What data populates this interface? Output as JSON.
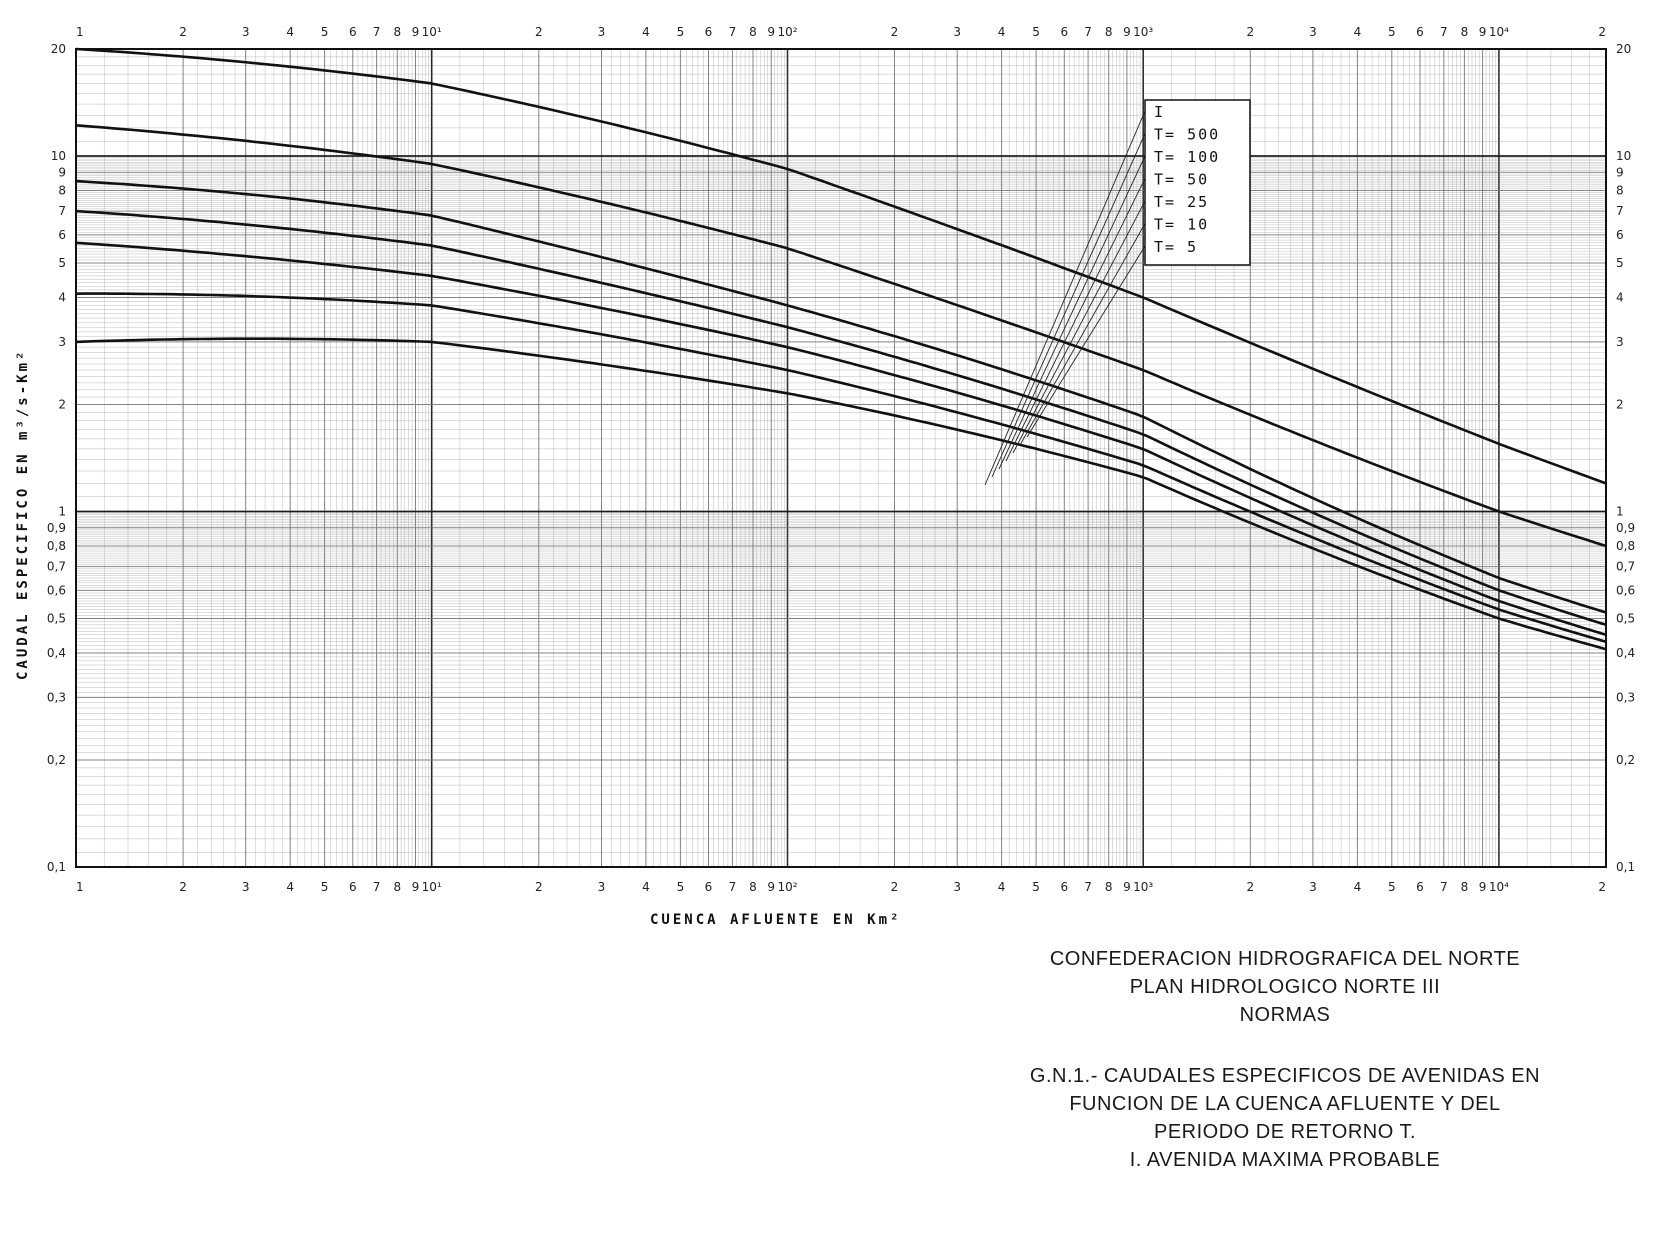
{
  "chart_data": {
    "type": "line",
    "xscale": "log",
    "yscale": "log",
    "xlim": [
      1,
      20000
    ],
    "ylim": [
      0.1,
      20
    ],
    "grid": true,
    "xlabel": "CUENCA AFLUENTE EN Km²",
    "ylabel": "CAUDAL ESPECIFICO EN m³/s-Km²",
    "x_tick_labels": [
      "1",
      "2",
      "3",
      "4",
      "5",
      "6",
      "7",
      "8",
      "9",
      "10¹",
      "2",
      "3",
      "4",
      "5",
      "6",
      "7",
      "8",
      "9",
      "10²",
      "2",
      "3",
      "4",
      "5",
      "6",
      "7",
      "8",
      "9",
      "10³",
      "2",
      "3",
      "4",
      "5",
      "6",
      "7",
      "8",
      "9",
      "10⁴",
      "2"
    ],
    "y_tick_labels_left": [
      "20",
      "10",
      "9",
      "8",
      "7",
      "6",
      "5",
      "4",
      "3",
      "2",
      "1",
      "0,9",
      "0,8",
      "0,7",
      "0,6",
      "0,5",
      "0,4",
      "0,3",
      "0,2",
      "0,1"
    ],
    "y_tick_labels_right": [
      "20",
      "10",
      "9",
      "8",
      "7",
      "6",
      "5",
      "4",
      "3",
      "2",
      "1",
      "0,9",
      "0,8",
      "0,7",
      "0,6",
      "0,5",
      "0,4",
      "0,3",
      "0,2",
      "0,1"
    ],
    "legend_position": "upper-middle-right",
    "legend": [
      "I",
      "T= 500",
      "T= 100",
      "T=  50",
      "T=  25",
      "T=  10",
      "T=   5"
    ],
    "series": [
      {
        "name": "I",
        "x": [
          1,
          10,
          100,
          1000,
          10000,
          20000
        ],
        "y": [
          20,
          16,
          9.2,
          4.0,
          1.55,
          1.2
        ]
      },
      {
        "name": "T= 500",
        "x": [
          1,
          10,
          100,
          1000,
          10000,
          20000
        ],
        "y": [
          12.2,
          9.5,
          5.5,
          2.5,
          1.0,
          0.8
        ]
      },
      {
        "name": "T= 100",
        "x": [
          1,
          10,
          100,
          1000,
          10000,
          20000
        ],
        "y": [
          8.5,
          6.8,
          3.8,
          1.85,
          0.65,
          0.52
        ]
      },
      {
        "name": "T=  50",
        "x": [
          1,
          10,
          100,
          1000,
          10000,
          20000
        ],
        "y": [
          7.0,
          5.6,
          3.3,
          1.65,
          0.6,
          0.48
        ]
      },
      {
        "name": "T=  25",
        "x": [
          1,
          10,
          100,
          1000,
          10000,
          20000
        ],
        "y": [
          5.7,
          4.6,
          2.9,
          1.5,
          0.56,
          0.45
        ]
      },
      {
        "name": "T=  10",
        "x": [
          1,
          10,
          100,
          1000,
          10000,
          20000
        ],
        "y": [
          4.1,
          3.8,
          2.5,
          1.35,
          0.53,
          0.43
        ]
      },
      {
        "name": "T=   5",
        "x": [
          1,
          10,
          100,
          1000,
          10000,
          20000
        ],
        "y": [
          3.0,
          3.0,
          2.15,
          1.25,
          0.5,
          0.41
        ]
      }
    ]
  },
  "caption": {
    "org": "CONFEDERACION HIDROGRAFICA DEL NORTE",
    "plan": "PLAN HIDROLOGICO NORTE III",
    "normas": "NORMAS",
    "figure_line1": "G.N.1.- CAUDALES ESPECIFICOS DE AVENIDAS EN",
    "figure_line2": "FUNCION DE LA CUENCA AFLUENTE Y DEL",
    "figure_line3": "PERIODO DE RETORNO T.",
    "figure_line4": "I. AVENIDA MAXIMA PROBABLE"
  },
  "colors": {
    "grid_major": "#1a1a1a",
    "grid_minor": "#777777",
    "curve": "#111111",
    "paper": "#ffffff"
  }
}
